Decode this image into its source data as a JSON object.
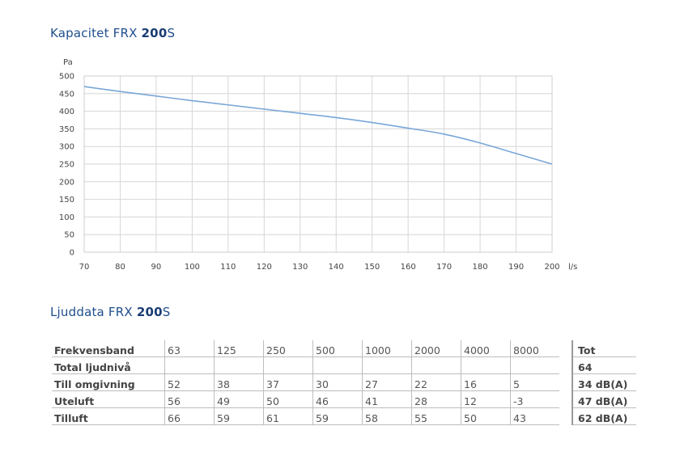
{
  "chart_title": {
    "prefix": "Kapacitet FRX ",
    "bold": "200",
    "suffix": "S"
  },
  "chart_data": {
    "type": "line",
    "ylabel": "Pa",
    "xlabel": "l/s",
    "xlim": [
      70,
      200
    ],
    "ylim": [
      0,
      500
    ],
    "x_ticks": [
      70,
      80,
      90,
      100,
      110,
      120,
      130,
      140,
      150,
      160,
      170,
      180,
      190,
      200
    ],
    "y_ticks": [
      0,
      50,
      100,
      150,
      200,
      250,
      300,
      350,
      400,
      450,
      500
    ],
    "grid": true,
    "color": "#7aa7d8",
    "series": [
      {
        "x": [
          70,
          80,
          90,
          100,
          110,
          120,
          130,
          140,
          150,
          160,
          170,
          180,
          190,
          200
        ],
        "y": [
          470,
          456,
          443,
          430,
          418,
          406,
          394,
          382,
          368,
          352,
          335,
          310,
          280,
          250
        ]
      }
    ]
  },
  "table_title": {
    "prefix": "Ljuddata FRX ",
    "bold": "200",
    "suffix": "S"
  },
  "table": {
    "header": {
      "label": "Frekvensband",
      "cells": [
        "63",
        "125",
        "250",
        "500",
        "1000",
        "2000",
        "4000",
        "8000"
      ],
      "tot": "Tot"
    },
    "rows": [
      {
        "label": "Total ljudnivå",
        "cells": [
          "",
          "",
          "",
          "",
          "",
          "",
          "",
          ""
        ],
        "tot": "64"
      },
      {
        "label": "Till omgivning",
        "cells": [
          "52",
          "38",
          "37",
          "30",
          "27",
          "22",
          "16",
          "5"
        ],
        "tot": "34 dB(A)"
      },
      {
        "label": "Uteluft",
        "cells": [
          "56",
          "49",
          "50",
          "46",
          "41",
          "28",
          "12",
          "-3"
        ],
        "tot": "47 dB(A)"
      },
      {
        "label": "Tilluft",
        "cells": [
          "66",
          "59",
          "61",
          "59",
          "58",
          "55",
          "50",
          "43"
        ],
        "tot": "62 dB(A)"
      }
    ]
  }
}
